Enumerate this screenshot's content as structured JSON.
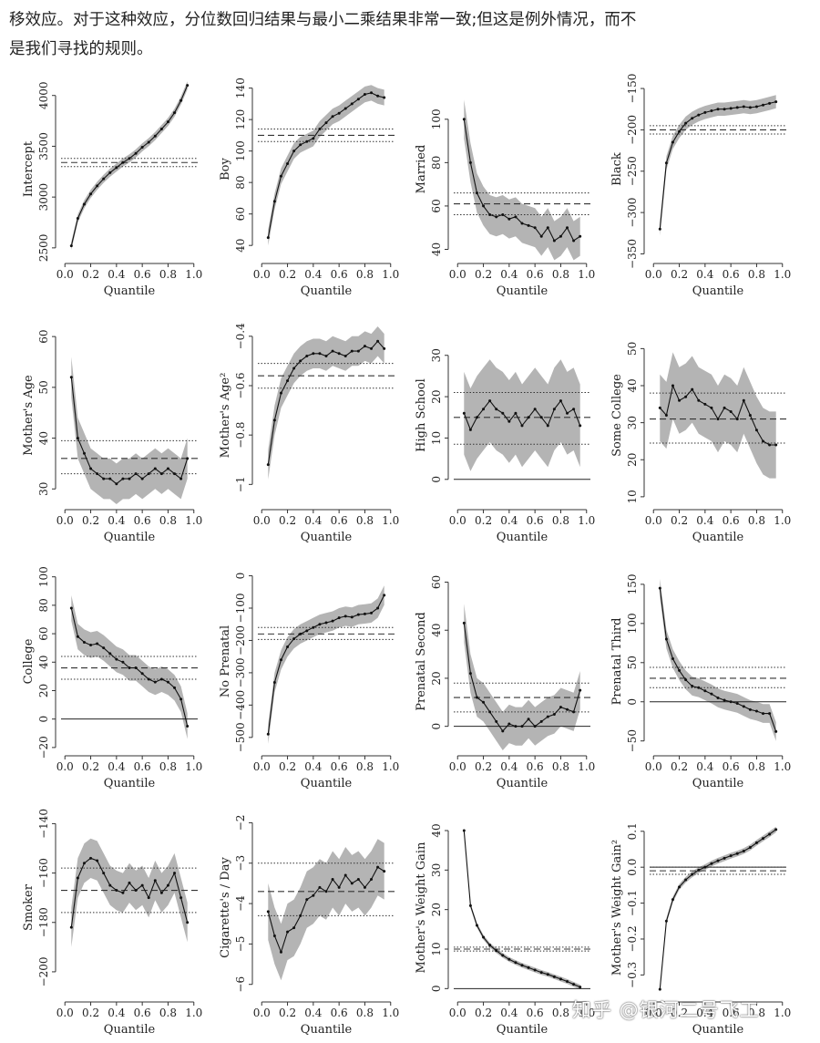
{
  "intro": {
    "line1": "移效应。对于这种效应，分位数回归结果与最小二乘结果非常一致;但这是例外情况，而不",
    "line2": "是我们寻找的规则。"
  },
  "watermark": "知乎 @银河二号飞工",
  "colors": {
    "band": "#b4b4b4",
    "line": "#111111",
    "axis": "#333333"
  },
  "chart_data": [
    {
      "type": "line",
      "ylabel": "Intercept",
      "xlabel": "Quantile",
      "xticks": [
        "0.0",
        "0.2",
        "0.4",
        "0.6",
        "0.8",
        "1.0"
      ],
      "yticks": [
        2500,
        3000,
        3500,
        4000
      ],
      "yrange": [
        2400,
        4150
      ],
      "x": [
        0.05,
        0.1,
        0.15,
        0.2,
        0.25,
        0.3,
        0.35,
        0.4,
        0.45,
        0.5,
        0.55,
        0.6,
        0.65,
        0.7,
        0.75,
        0.8,
        0.85,
        0.9,
        0.95
      ],
      "values": [
        2520,
        2790,
        2930,
        3030,
        3110,
        3180,
        3240,
        3290,
        3340,
        3380,
        3430,
        3490,
        3540,
        3600,
        3670,
        3740,
        3830,
        3950,
        4100
      ],
      "band": 40,
      "ols": 3340,
      "ci": [
        3300,
        3380
      ],
      "zero": null
    },
    {
      "type": "line",
      "ylabel": "Boy",
      "xlabel": "Quantile",
      "xticks": [
        "0.0",
        "0.2",
        "0.4",
        "0.6",
        "0.8",
        "1.0"
      ],
      "yticks": [
        40,
        60,
        80,
        100,
        120,
        140
      ],
      "yrange": [
        32,
        145
      ],
      "x": [
        0.05,
        0.1,
        0.15,
        0.2,
        0.25,
        0.3,
        0.35,
        0.4,
        0.45,
        0.5,
        0.55,
        0.6,
        0.65,
        0.7,
        0.75,
        0.8,
        0.85,
        0.9,
        0.95
      ],
      "values": [
        45,
        68,
        84,
        92,
        100,
        104,
        106,
        108,
        114,
        118,
        122,
        124,
        127,
        130,
        133,
        136,
        137,
        135,
        134
      ],
      "band": 5,
      "ols": 110,
      "ci": [
        106,
        114
      ],
      "zero": null
    },
    {
      "type": "line",
      "ylabel": "Married",
      "xlabel": "Quantile",
      "xticks": [
        "0.0",
        "0.2",
        "0.4",
        "0.6",
        "0.8",
        "1.0"
      ],
      "yticks": [
        40,
        60,
        80,
        100
      ],
      "yrange": [
        36,
        118
      ],
      "x": [
        0.05,
        0.1,
        0.15,
        0.2,
        0.25,
        0.3,
        0.35,
        0.4,
        0.45,
        0.5,
        0.55,
        0.6,
        0.65,
        0.7,
        0.75,
        0.8,
        0.85,
        0.9,
        0.95
      ],
      "values": [
        100,
        80,
        66,
        60,
        56,
        55,
        56,
        54,
        55,
        52,
        51,
        50,
        46,
        50,
        44,
        46,
        50,
        44,
        46
      ],
      "band": 9,
      "ols": 61,
      "ci": [
        56,
        66
      ],
      "zero": null
    },
    {
      "type": "line",
      "ylabel": "Black",
      "xlabel": "Quantile",
      "xticks": [
        "0.0",
        "0.2",
        "0.4",
        "0.6",
        "0.8",
        "1.0"
      ],
      "yticks": [
        -350,
        -300,
        -250,
        -200,
        -150
      ],
      "yrange": [
        -355,
        -140
      ],
      "x": [
        0.05,
        0.1,
        0.15,
        0.2,
        0.25,
        0.3,
        0.35,
        0.4,
        0.45,
        0.5,
        0.55,
        0.6,
        0.65,
        0.7,
        0.75,
        0.8,
        0.85,
        0.9,
        0.95
      ],
      "values": [
        -320,
        -240,
        -215,
        -202,
        -192,
        -186,
        -182,
        -179,
        -177,
        -175,
        -175,
        -174,
        -173,
        -172,
        -173,
        -172,
        -170,
        -168,
        -166
      ],
      "band": 8,
      "ols": -200,
      "ci": [
        -205,
        -195
      ],
      "zero": null
    },
    {
      "type": "line",
      "ylabel": "Mother's Age",
      "xlabel": "Quantile",
      "xticks": [
        "0.0",
        "0.2",
        "0.4",
        "0.6",
        "0.8",
        "1.0"
      ],
      "yticks": [
        30,
        40,
        50,
        60
      ],
      "yrange": [
        27,
        62
      ],
      "x": [
        0.05,
        0.1,
        0.15,
        0.2,
        0.25,
        0.3,
        0.35,
        0.4,
        0.45,
        0.5,
        0.55,
        0.6,
        0.65,
        0.7,
        0.75,
        0.8,
        0.85,
        0.9,
        0.95
      ],
      "values": [
        52,
        40,
        37,
        34,
        33,
        32,
        32,
        31,
        32,
        32,
        33,
        32,
        33,
        34,
        33,
        34,
        33,
        32,
        36
      ],
      "band": 4,
      "ols": 36,
      "ci": [
        33,
        39.5
      ],
      "zero": null
    },
    {
      "type": "line",
      "ylabel": "Mother's Age²",
      "xlabel": "Quantile",
      "xticks": [
        "0.0",
        "0.2",
        "0.4",
        "0.6",
        "0.8",
        "1.0"
      ],
      "yticks": [
        -1.0,
        -0.8,
        -0.6,
        -0.4
      ],
      "yrange": [
        -1.08,
        -0.36
      ],
      "x": [
        0.05,
        0.1,
        0.15,
        0.2,
        0.25,
        0.3,
        0.35,
        0.4,
        0.45,
        0.5,
        0.55,
        0.6,
        0.65,
        0.7,
        0.75,
        0.8,
        0.85,
        0.9,
        0.95
      ],
      "values": [
        -0.92,
        -0.74,
        -0.63,
        -0.58,
        -0.53,
        -0.5,
        -0.48,
        -0.47,
        -0.47,
        -0.48,
        -0.46,
        -0.47,
        -0.48,
        -0.46,
        -0.46,
        -0.44,
        -0.45,
        -0.42,
        -0.45
      ],
      "band": 0.06,
      "ols": -0.56,
      "ci": [
        -0.61,
        -0.51
      ],
      "zero": null
    },
    {
      "type": "line",
      "ylabel": "High School",
      "xlabel": "Quantile",
      "xticks": [
        "0.0",
        "0.2",
        "0.4",
        "0.6",
        "0.8",
        "1.0"
      ],
      "yticks": [
        0,
        10,
        20,
        30
      ],
      "yrange": [
        -6,
        37
      ],
      "x": [
        0.05,
        0.1,
        0.15,
        0.2,
        0.25,
        0.3,
        0.35,
        0.4,
        0.45,
        0.5,
        0.55,
        0.6,
        0.65,
        0.7,
        0.75,
        0.8,
        0.85,
        0.9,
        0.95
      ],
      "values": [
        16,
        12,
        15,
        17,
        19,
        17,
        16,
        14,
        16,
        13,
        15,
        17,
        15,
        13,
        17,
        19,
        16,
        17,
        13
      ],
      "band": 10,
      "ols": 15,
      "ci": [
        8.5,
        21
      ],
      "zero": 0
    },
    {
      "type": "line",
      "ylabel": "Some College",
      "xlabel": "Quantile",
      "xticks": [
        "0.0",
        "0.2",
        "0.4",
        "0.6",
        "0.8",
        "1.0"
      ],
      "yticks": [
        10,
        20,
        30,
        40,
        50
      ],
      "yrange": [
        8,
        56
      ],
      "x": [
        0.05,
        0.1,
        0.15,
        0.2,
        0.25,
        0.3,
        0.35,
        0.4,
        0.45,
        0.5,
        0.55,
        0.6,
        0.65,
        0.7,
        0.75,
        0.8,
        0.85,
        0.9,
        0.95
      ],
      "values": [
        34,
        32,
        40,
        36,
        37,
        39,
        36,
        35,
        34,
        31,
        34,
        33,
        31,
        36,
        32,
        28,
        25,
        24,
        24
      ],
      "band": 9,
      "ols": 31,
      "ci": [
        24.5,
        38
      ],
      "zero": null
    },
    {
      "type": "line",
      "ylabel": "College",
      "xlabel": "Quantile",
      "xticks": [
        "0.0",
        "0.2",
        "0.4",
        "0.6",
        "0.8",
        "1.0"
      ],
      "yticks": [
        -20,
        0,
        20,
        40,
        60,
        80,
        100
      ],
      "yrange": [
        -22,
        103
      ],
      "x": [
        0.05,
        0.1,
        0.15,
        0.2,
        0.25,
        0.3,
        0.35,
        0.4,
        0.45,
        0.5,
        0.55,
        0.6,
        0.65,
        0.7,
        0.75,
        0.8,
        0.85,
        0.9,
        0.95
      ],
      "values": [
        78,
        58,
        54,
        52,
        53,
        50,
        46,
        42,
        40,
        36,
        36,
        32,
        28,
        26,
        28,
        26,
        22,
        14,
        -5
      ],
      "band": 9,
      "ols": 36,
      "ci": [
        28,
        44
      ],
      "zero": 0
    },
    {
      "type": "line",
      "ylabel": "No Prenatal",
      "xlabel": "Quantile",
      "xticks": [
        "0.0",
        "0.2",
        "0.4",
        "0.6",
        "0.8",
        "1.0"
      ],
      "yticks": [
        -500,
        -400,
        -300,
        -200,
        -100,
        0
      ],
      "yrange": [
        -540,
        10
      ],
      "x": [
        0.05,
        0.1,
        0.15,
        0.2,
        0.25,
        0.3,
        0.35,
        0.4,
        0.45,
        0.5,
        0.55,
        0.6,
        0.65,
        0.7,
        0.75,
        0.8,
        0.85,
        0.9,
        0.95
      ],
      "values": [
        -490,
        -330,
        -260,
        -220,
        -195,
        -180,
        -170,
        -160,
        -150,
        -145,
        -140,
        -130,
        -125,
        -128,
        -120,
        -118,
        -115,
        -100,
        -60
      ],
      "band": 30,
      "ols": -180,
      "ci": [
        -197,
        -160
      ],
      "zero": null
    },
    {
      "type": "line",
      "ylabel": "Prenatal Second",
      "xlabel": "Quantile",
      "xticks": [
        "0.0",
        "0.2",
        "0.4",
        "0.6",
        "0.8",
        "1.0"
      ],
      "yticks": [
        0,
        20,
        40,
        60
      ],
      "yrange": [
        -10,
        64
      ],
      "x": [
        0.05,
        0.1,
        0.15,
        0.2,
        0.25,
        0.3,
        0.35,
        0.4,
        0.45,
        0.5,
        0.55,
        0.6,
        0.65,
        0.7,
        0.75,
        0.8,
        0.85,
        0.9,
        0.95
      ],
      "values": [
        43,
        22,
        12,
        10,
        6,
        2,
        -2,
        1,
        0,
        0,
        3,
        0,
        2,
        4,
        5,
        8,
        7,
        6,
        15
      ],
      "band": 8,
      "ols": 12,
      "ci": [
        6,
        18
      ],
      "zero": 0
    },
    {
      "type": "line",
      "ylabel": "Prenatal Third",
      "xlabel": "Quantile",
      "xticks": [
        "0.0",
        "0.2",
        "0.4",
        "0.6",
        "0.8",
        "1.0"
      ],
      "yticks": [
        -50,
        0,
        50,
        100,
        150
      ],
      "yrange": [
        -62,
        165
      ],
      "x": [
        0.05,
        0.1,
        0.15,
        0.2,
        0.25,
        0.3,
        0.35,
        0.4,
        0.45,
        0.5,
        0.55,
        0.6,
        0.65,
        0.7,
        0.75,
        0.8,
        0.85,
        0.9,
        0.95
      ],
      "values": [
        145,
        80,
        55,
        40,
        28,
        20,
        18,
        14,
        10,
        5,
        2,
        0,
        -2,
        -6,
        -10,
        -12,
        -15,
        -15,
        -38
      ],
      "band": 12,
      "ols": 30,
      "ci": [
        18,
        44
      ],
      "zero": 0
    },
    {
      "type": "line",
      "ylabel": "Smoker",
      "xlabel": "Quantile",
      "xticks": [
        "0.0",
        "0.2",
        "0.4",
        "0.6",
        "0.8",
        "1.0"
      ],
      "yticks": [
        -200,
        -180,
        -160,
        -140
      ],
      "yrange": [
        -210,
        -138
      ],
      "x": [
        0.05,
        0.1,
        0.15,
        0.2,
        0.25,
        0.3,
        0.35,
        0.4,
        0.45,
        0.5,
        0.55,
        0.6,
        0.65,
        0.7,
        0.75,
        0.8,
        0.85,
        0.9,
        0.95
      ],
      "values": [
        -182,
        -162,
        -156,
        -154,
        -155,
        -160,
        -165,
        -167,
        -168,
        -164,
        -167,
        -165,
        -170,
        -163,
        -168,
        -165,
        -160,
        -170,
        -180
      ],
      "band": 8,
      "ols": -167,
      "ci": [
        -176,
        -158
      ],
      "zero": null
    },
    {
      "type": "line",
      "ylabel": "Cigarette's / Day",
      "xlabel": "Quantile",
      "xticks": [
        "0.0",
        "0.2",
        "0.4",
        "0.6",
        "0.8",
        "1.0"
      ],
      "yticks": [
        -6,
        -5,
        -4,
        -3,
        -2
      ],
      "yrange": [
        -6.3,
        -1.9
      ],
      "x": [
        0.05,
        0.1,
        0.15,
        0.2,
        0.25,
        0.3,
        0.35,
        0.4,
        0.45,
        0.5,
        0.55,
        0.6,
        0.65,
        0.7,
        0.75,
        0.8,
        0.85,
        0.9,
        0.95
      ],
      "values": [
        -4.2,
        -4.8,
        -5.2,
        -4.7,
        -4.6,
        -4.3,
        -3.9,
        -3.8,
        -3.6,
        -3.7,
        -3.4,
        -3.6,
        -3.3,
        -3.5,
        -3.4,
        -3.6,
        -3.4,
        -3.1,
        -3.2
      ],
      "band": 0.7,
      "ols": -3.7,
      "ci": [
        -4.3,
        -3.0
      ],
      "zero": null
    },
    {
      "type": "line",
      "ylabel": "Mother's Weight Gain",
      "xlabel": "Quantile",
      "xticks": [
        "0.0",
        "0.2",
        "0.4",
        "0.6",
        "0.8",
        "1.0"
      ],
      "yticks": [
        0,
        10,
        20,
        30,
        40
      ],
      "yrange": [
        -2,
        43
      ],
      "x": [
        0.05,
        0.1,
        0.15,
        0.2,
        0.25,
        0.3,
        0.35,
        0.4,
        0.45,
        0.5,
        0.55,
        0.6,
        0.65,
        0.7,
        0.75,
        0.8,
        0.85,
        0.9,
        0.95
      ],
      "values": [
        40,
        21,
        16,
        13,
        11,
        9.6,
        8.4,
        7.4,
        6.6,
        5.9,
        5.3,
        4.7,
        4.1,
        3.6,
        3.0,
        2.4,
        1.8,
        1.1,
        0.4
      ],
      "band": 0.6,
      "ols": 10,
      "ci": [
        9.5,
        10.5
      ],
      "zero": 0
    },
    {
      "type": "line",
      "ylabel": "Mother's Weight Gain²",
      "xlabel": "Quantile",
      "xticks": [
        "0.0",
        "0.2",
        "0.4",
        "0.6",
        "0.8",
        "1.0"
      ],
      "yticks": [
        -0.3,
        -0.2,
        -0.1,
        0.0,
        0.1
      ],
      "yrange": [
        -0.36,
        0.135
      ],
      "x": [
        0.05,
        0.1,
        0.15,
        0.2,
        0.25,
        0.3,
        0.35,
        0.4,
        0.45,
        0.5,
        0.55,
        0.6,
        0.65,
        0.7,
        0.75,
        0.8,
        0.85,
        0.9,
        0.95
      ],
      "values": [
        -0.34,
        -0.15,
        -0.09,
        -0.055,
        -0.035,
        -0.02,
        -0.008,
        0.0,
        0.01,
        0.018,
        0.025,
        0.032,
        0.038,
        0.045,
        0.055,
        0.068,
        0.08,
        0.092,
        0.105
      ],
      "band": 0.008,
      "ols": -0.01,
      "ci": [
        -0.02,
        0.0
      ],
      "zero": 0
    }
  ]
}
